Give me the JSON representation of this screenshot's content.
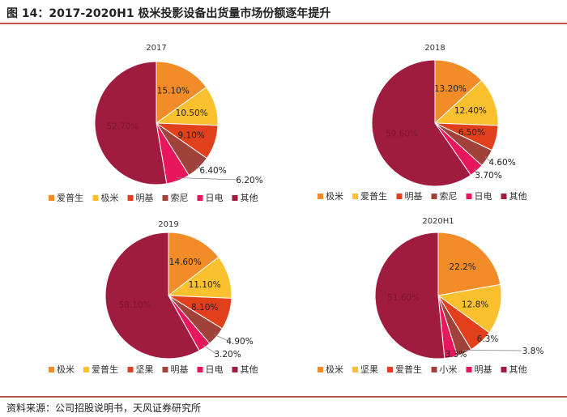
{
  "figure": {
    "title": "图 14：2017-2020H1 极米投影设备出货量市场份额逐年提升",
    "source": "资料来源：公司招股说明书，天风证券研究所"
  },
  "colors": {
    "orange": "#f28c28",
    "yellow": "#fbc02d",
    "red": "#e2401c",
    "brown": "#a0413a",
    "pink": "#e8175d",
    "maroon": "#a01c3e"
  },
  "chart_data": [
    {
      "type": "pie",
      "title": "2017",
      "labels": [
        "爱普生",
        "极米",
        "明基",
        "索尼",
        "日电",
        "其他"
      ],
      "values": [
        15.1,
        10.5,
        9.1,
        6.4,
        6.2,
        52.7
      ],
      "display": [
        "15.10%",
        "10.50%",
        "9.10%",
        "6.40%",
        "6.20%",
        "52.70%"
      ],
      "colors": [
        "#f28c28",
        "#fbc02d",
        "#e2401c",
        "#a0413a",
        "#e8175d",
        "#a01c3e"
      ],
      "legend_position": "bottom"
    },
    {
      "type": "pie",
      "title": "2018",
      "labels": [
        "极米",
        "爱普生",
        "明基",
        "索尼",
        "日电",
        "其他"
      ],
      "values": [
        13.2,
        12.4,
        6.5,
        4.6,
        3.7,
        59.6
      ],
      "display": [
        "13.20%",
        "12.40%",
        "6.50%",
        "4.60%",
        "3.70%",
        "59.60%"
      ],
      "colors": [
        "#f28c28",
        "#fbc02d",
        "#e2401c",
        "#a0413a",
        "#e8175d",
        "#a01c3e"
      ],
      "legend_position": "bottom"
    },
    {
      "type": "pie",
      "title": "2019",
      "labels": [
        "极米",
        "爱普生",
        "坚果",
        "明基",
        "日电",
        "其他"
      ],
      "values": [
        14.6,
        11.1,
        8.1,
        4.9,
        3.2,
        58.1
      ],
      "display": [
        "14.60%",
        "11.10%",
        "8.10%",
        "4.90%",
        "3.20%",
        "58.10%"
      ],
      "colors": [
        "#f28c28",
        "#fbc02d",
        "#e2401c",
        "#a0413a",
        "#e8175d",
        "#a01c3e"
      ],
      "legend_position": "bottom"
    },
    {
      "type": "pie",
      "title": "2020H1",
      "labels": [
        "极米",
        "坚果",
        "爱普生",
        "小米",
        "明基",
        "其他"
      ],
      "values": [
        22.2,
        12.8,
        6.3,
        3.8,
        3.3,
        51.6
      ],
      "display": [
        "22.2%",
        "12.8%",
        "6.3%",
        "3.8%",
        "3.3%",
        "51.60%"
      ],
      "colors": [
        "#f28c28",
        "#fbc02d",
        "#e2401c",
        "#a0413a",
        "#e8175d",
        "#a01c3e"
      ],
      "legend_position": "bottom"
    }
  ]
}
